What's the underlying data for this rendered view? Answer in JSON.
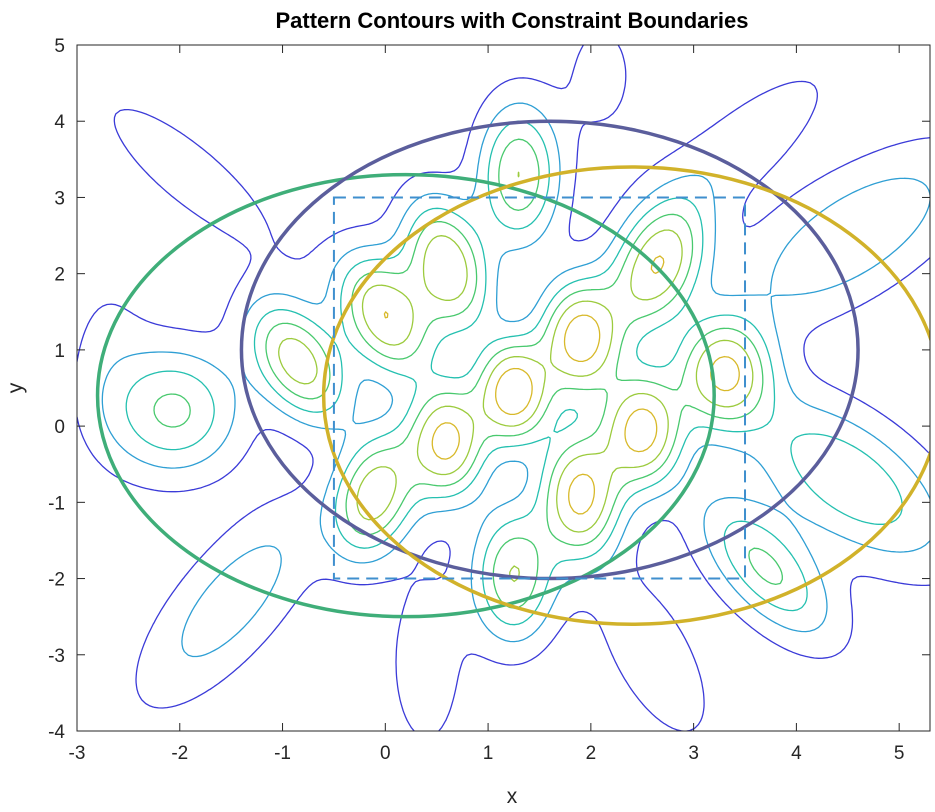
{
  "chart_data": {
    "type": "contour",
    "title": "Pattern Contours with Constraint Boundaries",
    "xlabel": "x",
    "ylabel": "y",
    "xlim": [
      -3,
      5.3
    ],
    "ylim": [
      -4,
      5
    ],
    "xticks": [
      -3,
      -2,
      -1,
      0,
      1,
      2,
      3,
      4,
      5
    ],
    "yticks": [
      -4,
      -3,
      -2,
      -1,
      0,
      1,
      2,
      3,
      4,
      5
    ],
    "grid": false,
    "colormap": [
      "#3b3bd8",
      "#2f9fd4",
      "#25c0b0",
      "#49c96e",
      "#9ccb3e",
      "#d8b92a"
    ],
    "contour_levels": [
      0.08,
      0.2,
      0.33,
      0.47,
      0.62,
      0.8
    ],
    "peaks": [
      {
        "x": -2.05,
        "y": 0.2,
        "amp": 0.5,
        "sx": 0.42,
        "sy": 0.55,
        "rot": 0
      },
      {
        "x": -0.85,
        "y": 0.85,
        "amp": 0.72,
        "sx": 0.28,
        "sy": 0.55,
        "rot": 20
      },
      {
        "x": 0.0,
        "y": 1.45,
        "amp": 0.78,
        "sx": 0.28,
        "sy": 0.55,
        "rot": 15
      },
      {
        "x": 0.6,
        "y": 2.1,
        "amp": 0.78,
        "sx": 0.26,
        "sy": 0.58,
        "rot": 10
      },
      {
        "x": 1.3,
        "y": 3.3,
        "amp": 0.62,
        "sx": 0.26,
        "sy": 0.62,
        "rot": 0
      },
      {
        "x": 2.65,
        "y": 2.1,
        "amp": 0.78,
        "sx": 0.28,
        "sy": 0.58,
        "rot": -15
      },
      {
        "x": 3.3,
        "y": 0.7,
        "amp": 0.8,
        "sx": 0.3,
        "sy": 0.48,
        "rot": 0
      },
      {
        "x": 1.9,
        "y": 1.15,
        "amp": 0.9,
        "sx": 0.26,
        "sy": 0.5,
        "rot": 0
      },
      {
        "x": 1.25,
        "y": 0.45,
        "amp": 0.95,
        "sx": 0.24,
        "sy": 0.45,
        "rot": 0
      },
      {
        "x": 0.6,
        "y": -0.2,
        "amp": 0.85,
        "sx": 0.25,
        "sy": 0.5,
        "rot": 0
      },
      {
        "x": -0.1,
        "y": -0.9,
        "amp": 0.72,
        "sx": 0.26,
        "sy": 0.55,
        "rot": -10
      },
      {
        "x": 2.5,
        "y": -0.05,
        "amp": 0.88,
        "sx": 0.26,
        "sy": 0.5,
        "rot": 0
      },
      {
        "x": 1.9,
        "y": -0.9,
        "amp": 0.85,
        "sx": 0.26,
        "sy": 0.55,
        "rot": 0
      },
      {
        "x": 1.25,
        "y": -1.95,
        "amp": 0.62,
        "sx": 0.26,
        "sy": 0.58,
        "rot": 0
      },
      {
        "x": 4.5,
        "y": -0.7,
        "amp": 0.45,
        "sx": 0.45,
        "sy": 0.9,
        "rot": 40
      },
      {
        "x": 4.55,
        "y": 2.5,
        "amp": 0.32,
        "sx": 0.45,
        "sy": 1.0,
        "rot": -45
      },
      {
        "x": 3.7,
        "y": -1.85,
        "amp": 0.5,
        "sx": 0.3,
        "sy": 0.7,
        "rot": 30
      },
      {
        "x": -1.5,
        "y": -2.3,
        "amp": 0.28,
        "sx": 0.35,
        "sy": 1.0,
        "rot": -30
      },
      {
        "x": -1.9,
        "y": 3.3,
        "amp": 0.12,
        "sx": 0.35,
        "sy": 1.2,
        "rot": 40
      },
      {
        "x": 3.4,
        "y": 3.6,
        "amp": 0.14,
        "sx": 0.35,
        "sy": 1.1,
        "rot": -40
      },
      {
        "x": 2.6,
        "y": -3.0,
        "amp": 0.14,
        "sx": 0.35,
        "sy": 1.0,
        "rot": 20
      },
      {
        "x": 0.4,
        "y": -3.1,
        "amp": 0.13,
        "sx": 0.3,
        "sy": 1.0,
        "rot": 0
      },
      {
        "x": 2.1,
        "y": 4.6,
        "amp": 0.11,
        "sx": 0.3,
        "sy": 0.7,
        "rot": 0
      },
      {
        "x": -2.7,
        "y": 0.9,
        "amp": 0.1,
        "sx": 0.3,
        "sy": 0.9,
        "rot": 0
      }
    ],
    "constraint_boundaries": [
      {
        "shape": "ellipse",
        "cx": 0.2,
        "cy": 0.4,
        "rx": 3.0,
        "ry": 2.9,
        "color": "#3fae79"
      },
      {
        "shape": "ellipse",
        "cx": 1.6,
        "cy": 1.0,
        "rx": 3.0,
        "ry": 3.0,
        "color": "#5b5e9c"
      },
      {
        "shape": "ellipse",
        "cx": 2.4,
        "cy": 0.4,
        "rx": 3.0,
        "ry": 3.0,
        "color": "#d1b22a"
      },
      {
        "shape": "rectangle",
        "x0": -0.5,
        "y0": -2.0,
        "x1": 3.5,
        "y1": 3.0,
        "color": "#3f8fce",
        "dashed": true
      }
    ]
  }
}
